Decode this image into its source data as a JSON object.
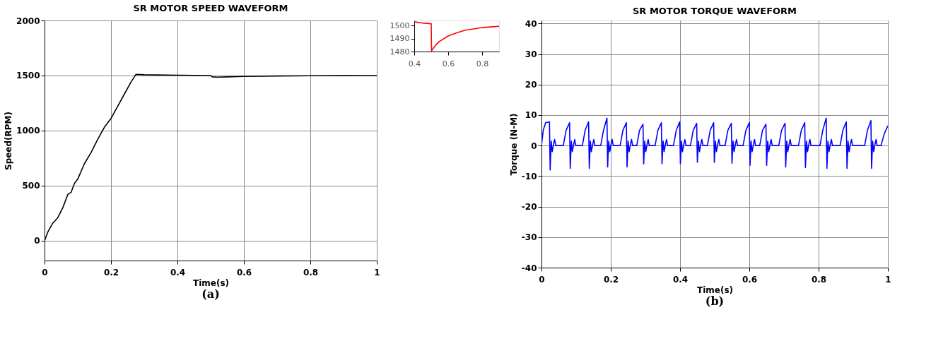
{
  "chart_data": [
    {
      "type": "line",
      "title": "SR MOTOR SPEED WAVEFORM",
      "xlabel": "Time(s)",
      "ylabel": "Speed(RPM)",
      "xlim": [
        0,
        1
      ],
      "xticks": [
        0,
        0.2,
        0.4,
        0.6,
        0.8,
        1
      ],
      "ylim": [
        -180,
        2000
      ],
      "yticks": [
        0,
        500,
        1000,
        1500,
        2000
      ],
      "grid": true,
      "annotations": [
        "(a)"
      ],
      "series": [
        {
          "color": "#000000",
          "x": [
            0,
            0.01,
            0.025,
            0.04,
            0.055,
            0.07,
            0.08,
            0.09,
            0.1,
            0.12,
            0.14,
            0.16,
            0.18,
            0.2,
            0.22,
            0.24,
            0.26,
            0.275,
            0.3,
            0.4,
            0.5,
            0.505,
            0.52,
            0.55,
            0.6,
            0.7,
            0.8,
            0.9,
            1.0
          ],
          "values": [
            0,
            80,
            160,
            210,
            300,
            420,
            440,
            520,
            560,
            700,
            800,
            920,
            1030,
            1110,
            1220,
            1330,
            1440,
            1510,
            1507,
            1503,
            1500,
            1488,
            1485,
            1488,
            1492,
            1496,
            1498,
            1499,
            1500
          ]
        }
      ]
    },
    {
      "type": "line",
      "xlim": [
        0.4,
        0.9
      ],
      "xticks": [
        0.4,
        0.6,
        0.8
      ],
      "ylim": [
        1480,
        1504
      ],
      "yticks": [
        1480,
        1490,
        1500
      ],
      "series": [
        {
          "color": "#ff0000",
          "x": [
            0.4,
            0.45,
            0.5,
            0.502,
            0.51,
            0.53,
            0.55,
            0.6,
            0.65,
            0.7,
            0.75,
            0.8,
            0.85,
            0.9
          ],
          "values": [
            1503,
            1502,
            1501.5,
            1480.5,
            1482,
            1485.5,
            1488,
            1492,
            1494.5,
            1496.5,
            1497.5,
            1498.5,
            1499,
            1499.5
          ]
        }
      ]
    },
    {
      "type": "line",
      "title": "SR MOTOR TORQUE WAVEFORM",
      "xlabel": "Time(s)",
      "ylabel": "Torque (N-M)",
      "xlim": [
        0,
        1
      ],
      "xticks": [
        0,
        0.2,
        0.4,
        0.6,
        0.8,
        1
      ],
      "ylim": [
        -40,
        41
      ],
      "yticks": [
        -40,
        -30,
        -20,
        -10,
        0,
        10,
        20,
        30,
        40
      ],
      "grid": true,
      "annotations": [
        "(b)"
      ],
      "series": [
        {
          "color": "#0000ff",
          "x": [
            0,
            0.005,
            0.012,
            0.023,
            0.025,
            0.028,
            0.031,
            0.035,
            0.038,
            0.041,
            0.063,
            0.071,
            0.081,
            0.083,
            0.086,
            0.089,
            0.093,
            0.096,
            0.099,
            0.118,
            0.126,
            0.136,
            0.138,
            0.141,
            0.144,
            0.148,
            0.151,
            0.154,
            0.171,
            0.179,
            0.189,
            0.191,
            0.194,
            0.197,
            0.201,
            0.204,
            0.207,
            0.227,
            0.235,
            0.245,
            0.247,
            0.25,
            0.253,
            0.257,
            0.26,
            0.263,
            0.275,
            0.283,
            0.293,
            0.295,
            0.298,
            0.301,
            0.305,
            0.308,
            0.311,
            0.328,
            0.336,
            0.346,
            0.348,
            0.351,
            0.354,
            0.358,
            0.361,
            0.364,
            0.381,
            0.389,
            0.399,
            0.401,
            0.404,
            0.407,
            0.411,
            0.414,
            0.417,
            0.43,
            0.438,
            0.448,
            0.45,
            0.453,
            0.456,
            0.46,
            0.463,
            0.466,
            0.479,
            0.487,
            0.497,
            0.499,
            0.502,
            0.505,
            0.509,
            0.512,
            0.515,
            0.53,
            0.538,
            0.548,
            0.55,
            0.553,
            0.556,
            0.56,
            0.563,
            0.566,
            0.582,
            0.59,
            0.6,
            0.602,
            0.605,
            0.608,
            0.612,
            0.615,
            0.618,
            0.63,
            0.638,
            0.648,
            0.65,
            0.653,
            0.656,
            0.66,
            0.663,
            0.666,
            0.685,
            0.693,
            0.703,
            0.705,
            0.708,
            0.711,
            0.715,
            0.718,
            0.721,
            0.742,
            0.75,
            0.76,
            0.762,
            0.765,
            0.768,
            0.772,
            0.775,
            0.778,
            0.804,
            0.812,
            0.822,
            0.824,
            0.827,
            0.83,
            0.834,
            0.837,
            0.84,
            0.862,
            0.87,
            0.88,
            0.882,
            0.885,
            0.888,
            0.892,
            0.895,
            0.898,
            0.933,
            0.941,
            0.951,
            0.953,
            0.956,
            0.959,
            0.963,
            0.966,
            0.969,
            0.98,
            0.99,
            1.0
          ],
          "values": [
            0,
            5,
            7.5,
            7.8,
            -8,
            1.5,
            -2,
            0.5,
            2,
            0,
            0,
            5,
            7.5,
            -7.5,
            1.5,
            -2,
            0.5,
            2,
            0,
            0,
            5,
            7.8,
            -7.5,
            1.5,
            -2,
            0.5,
            2,
            0,
            0,
            5,
            9,
            -7,
            1.5,
            -2,
            0.5,
            2,
            0,
            0,
            5,
            7.5,
            -7,
            1.5,
            -2,
            0.5,
            2,
            0,
            0,
            5,
            7,
            -6,
            1.5,
            -2,
            0.5,
            2,
            0,
            0,
            5,
            7.5,
            -6,
            1.5,
            -2,
            0.5,
            2,
            0,
            0,
            5,
            7.8,
            -6,
            1.5,
            -2,
            0.5,
            2,
            0,
            0,
            5,
            7.3,
            -5.5,
            1.5,
            -2,
            0.5,
            2,
            0,
            0,
            5,
            7.5,
            -5.5,
            1.5,
            -2,
            0.5,
            2,
            0,
            0,
            5,
            7.3,
            -5.8,
            1.5,
            -2,
            0.5,
            2,
            0,
            0,
            5,
            7.5,
            -6.5,
            1.5,
            -2,
            0.5,
            2,
            0,
            0,
            5,
            7,
            -6.5,
            1.5,
            -2,
            0.5,
            2,
            0,
            0,
            5,
            7.3,
            -7,
            1.5,
            -2,
            0.5,
            2,
            0,
            0,
            5,
            7.5,
            -7.2,
            1.5,
            -2,
            0.5,
            2,
            0,
            0,
            5,
            9,
            -7.5,
            1.5,
            -2,
            0.5,
            2,
            0,
            0,
            5,
            7.8,
            -7.5,
            1.5,
            -2,
            0.5,
            2,
            0,
            0,
            5,
            8.2,
            -7.5,
            1.5,
            -2,
            0.5,
            2,
            0,
            0,
            4,
            6.5
          ]
        }
      ]
    }
  ]
}
